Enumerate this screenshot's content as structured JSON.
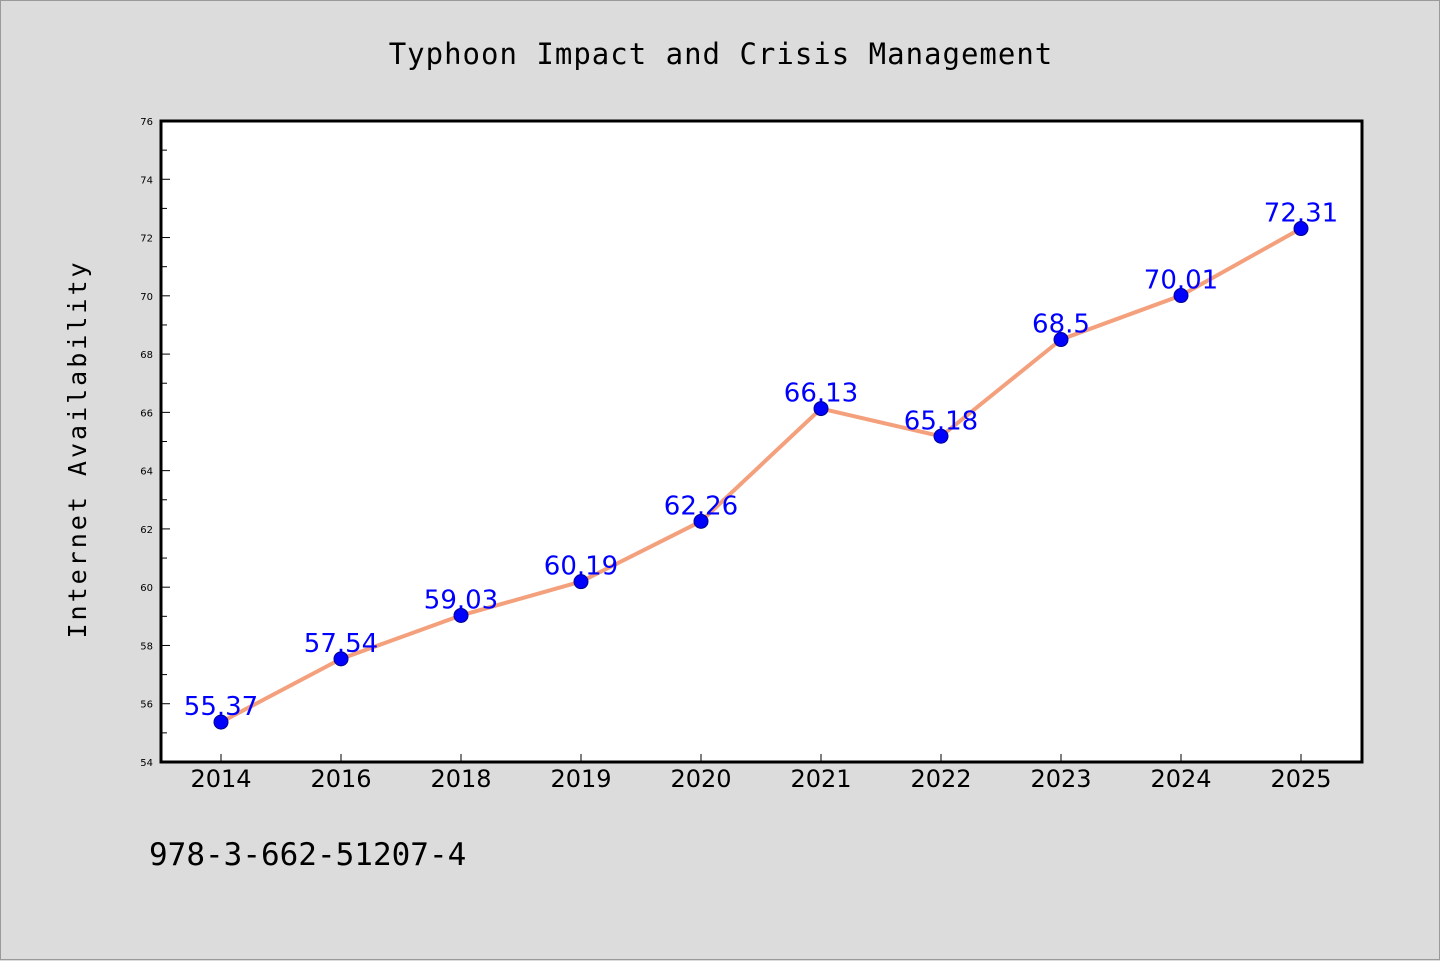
{
  "chart_data": {
    "type": "line",
    "title": "Typhoon Impact and Crisis Management",
    "xlabel": "",
    "ylabel": "Internet Availability",
    "categories": [
      "2014",
      "2016",
      "2018",
      "2019",
      "2020",
      "2021",
      "2022",
      "2023",
      "2024",
      "2025"
    ],
    "series": [
      {
        "values": [
          55.37,
          57.54,
          59.03,
          60.19,
          62.26,
          66.13,
          65.18,
          68.5,
          70.01,
          72.31
        ],
        "data_labels": [
          "55.37",
          "57.54",
          "59.03",
          "60.19",
          "62.26",
          "66.13",
          "65.18",
          "68.5",
          "70.01",
          "72.31"
        ],
        "line_color": "#f4a07c",
        "marker_color": "#0000ff"
      }
    ],
    "ylim": [
      54,
      76
    ],
    "y_ticks": [
      "54",
      "56",
      "58",
      "60",
      "62",
      "64",
      "66",
      "68",
      "70",
      "72",
      "74",
      "76"
    ],
    "grid": false,
    "legend": "none"
  },
  "footer": {
    "isbn": "978-3-662-51207-4"
  },
  "colors": {
    "background": "#dcdcdc",
    "plot_background": "#ffffff",
    "line": "#f4a07c",
    "marker": "#0000ff",
    "value_label": "#0000ff"
  }
}
